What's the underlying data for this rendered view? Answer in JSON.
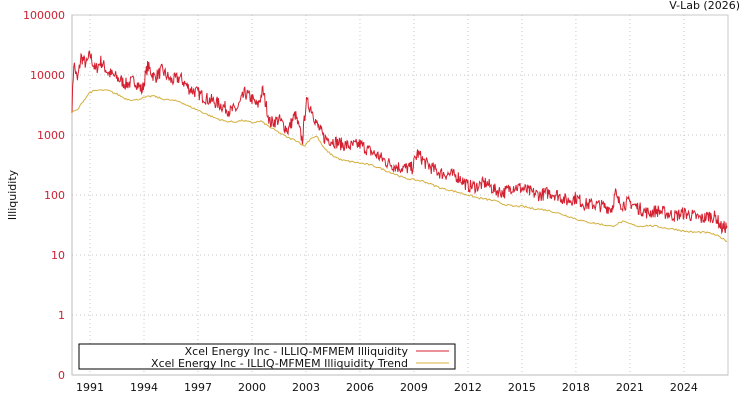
{
  "header": {
    "credit": "V-Lab (2026)"
  },
  "chart_data": {
    "type": "line",
    "title": "",
    "xlabel": "",
    "ylabel": "Illiquidity",
    "yscale": "log",
    "ylim": [
      0.1,
      100000
    ],
    "xlim": [
      1990.0,
      2026.45
    ],
    "grid": true,
    "legend_position": "bottom-left",
    "y_ticks": [
      {
        "label": "100000",
        "value": 100000
      },
      {
        "label": "10000",
        "value": 10000
      },
      {
        "label": "1000",
        "value": 1000
      },
      {
        "label": "100",
        "value": 100
      },
      {
        "label": "10",
        "value": 10
      },
      {
        "label": "1",
        "value": 1
      },
      {
        "label": "0",
        "value": 0.1
      }
    ],
    "x_ticks": [
      {
        "label": "1991",
        "value": 1991
      },
      {
        "label": "1994",
        "value": 1994
      },
      {
        "label": "1997",
        "value": 1997
      },
      {
        "label": "2000",
        "value": 2000
      },
      {
        "label": "2003",
        "value": 2003
      },
      {
        "label": "2006",
        "value": 2006
      },
      {
        "label": "2009",
        "value": 2009
      },
      {
        "label": "2012",
        "value": 2012
      },
      {
        "label": "2015",
        "value": 2015
      },
      {
        "label": "2018",
        "value": 2018
      },
      {
        "label": "2021",
        "value": 2021
      },
      {
        "label": "2024",
        "value": 2024
      }
    ],
    "series": [
      {
        "name": "Xcel Energy Inc - ILLIQ-MFMEM Illiquidity",
        "color": "#d42030",
        "x": [
          1990.0,
          1990.1,
          1990.3,
          1990.5,
          1990.8,
          1991.0,
          1991.3,
          1991.6,
          1992.0,
          1992.5,
          1993.0,
          1993.5,
          1993.9,
          1994.2,
          1994.6,
          1995.0,
          1995.5,
          1996.0,
          1996.5,
          1997.0,
          1997.5,
          1998.0,
          1998.4,
          1998.8,
          1999.2,
          1999.6,
          2000.0,
          2000.3,
          2000.6,
          2001.0,
          2001.5,
          2002.0,
          2002.4,
          2002.8,
          2003.0,
          2003.3,
          2003.6,
          2004.0,
          2004.5,
          2005.0,
          2005.5,
          2006.0,
          2006.5,
          2007.0,
          2007.5,
          2008.0,
          2008.5,
          2008.9,
          2009.2,
          2009.6,
          2010.0,
          2010.5,
          2011.0,
          2011.5,
          2012.0,
          2012.5,
          2013.0,
          2013.5,
          2014.0,
          2014.5,
          2015.0,
          2015.5,
          2016.0,
          2016.5,
          2017.0,
          2017.5,
          2018.0,
          2018.5,
          2019.0,
          2019.5,
          2020.0,
          2020.2,
          2020.3,
          2020.6,
          2021.0,
          2021.5,
          2022.0,
          2022.5,
          2023.0,
          2023.5,
          2024.0,
          2024.5,
          2025.0,
          2025.4,
          2025.8,
          2026.1,
          2026.4
        ],
        "values": [
          3000,
          16000,
          8000,
          20000,
          15000,
          22000,
          12000,
          17000,
          11000,
          9000,
          7000,
          8000,
          5500,
          14000,
          9000,
          12000,
          8000,
          9000,
          6000,
          5000,
          4000,
          3500,
          3000,
          2500,
          2800,
          5000,
          4000,
          3000,
          5500,
          1600,
          1800,
          1200,
          2200,
          800,
          3500,
          2800,
          1500,
          900,
          800,
          700,
          650,
          700,
          550,
          450,
          350,
          300,
          280,
          280,
          500,
          350,
          280,
          230,
          220,
          200,
          140,
          140,
          160,
          120,
          110,
          140,
          130,
          110,
          100,
          110,
          100,
          80,
          90,
          70,
          70,
          65,
          60,
          110,
          80,
          70,
          75,
          60,
          50,
          55,
          50,
          45,
          50,
          45,
          40,
          45,
          42,
          28,
          30
        ]
      },
      {
        "name": "Xcel Energy Inc - ILLIQ-MFMEM Illiquidity Trend",
        "color": "#d4b040",
        "x": [
          1990.0,
          1990.3,
          1990.6,
          1991.0,
          1991.5,
          1992.0,
          1992.5,
          1993.0,
          1993.5,
          1994.0,
          1994.5,
          1995.0,
          1995.5,
          1996.0,
          1996.5,
          1997.0,
          1997.5,
          1998.0,
          1998.5,
          1999.0,
          1999.5,
          2000.0,
          2000.5,
          2001.0,
          2001.5,
          2002.0,
          2002.5,
          2002.9,
          2003.3,
          2003.6,
          2004.0,
          2004.5,
          2005.0,
          2005.5,
          2006.0,
          2006.5,
          2007.0,
          2007.5,
          2008.0,
          2008.5,
          2009.0,
          2009.5,
          2010.0,
          2010.5,
          2011.0,
          2011.5,
          2012.0,
          2012.5,
          2013.0,
          2013.5,
          2014.0,
          2014.5,
          2015.0,
          2015.5,
          2016.0,
          2016.5,
          2017.0,
          2017.5,
          2018.0,
          2018.5,
          2019.0,
          2019.5,
          2020.0,
          2020.3,
          2020.6,
          2021.0,
          2021.5,
          2022.0,
          2022.5,
          2023.0,
          2023.5,
          2024.0,
          2024.5,
          2025.0,
          2025.5,
          2026.0,
          2026.4
        ],
        "values": [
          2400,
          2600,
          3600,
          5200,
          5600,
          5500,
          4800,
          4000,
          3800,
          4200,
          4500,
          4000,
          3800,
          3600,
          3000,
          2600,
          2200,
          1900,
          1700,
          1650,
          1750,
          1600,
          1700,
          1350,
          1100,
          900,
          800,
          650,
          900,
          950,
          600,
          450,
          380,
          360,
          340,
          320,
          290,
          250,
          220,
          190,
          180,
          170,
          150,
          130,
          120,
          110,
          100,
          90,
          85,
          80,
          70,
          65,
          65,
          60,
          58,
          55,
          50,
          45,
          40,
          36,
          34,
          32,
          30,
          33,
          36,
          33,
          30,
          31,
          30,
          28,
          27,
          25,
          24,
          24,
          23,
          20,
          17
        ]
      }
    ]
  },
  "legend": {
    "items": [
      {
        "label": "Xcel Energy Inc - ILLIQ-MFMEM Illiquidity",
        "color": "#d42030"
      },
      {
        "label": "Xcel Energy Inc - ILLIQ-MFMEM Illiquidity Trend",
        "color": "#d4b040"
      }
    ]
  }
}
